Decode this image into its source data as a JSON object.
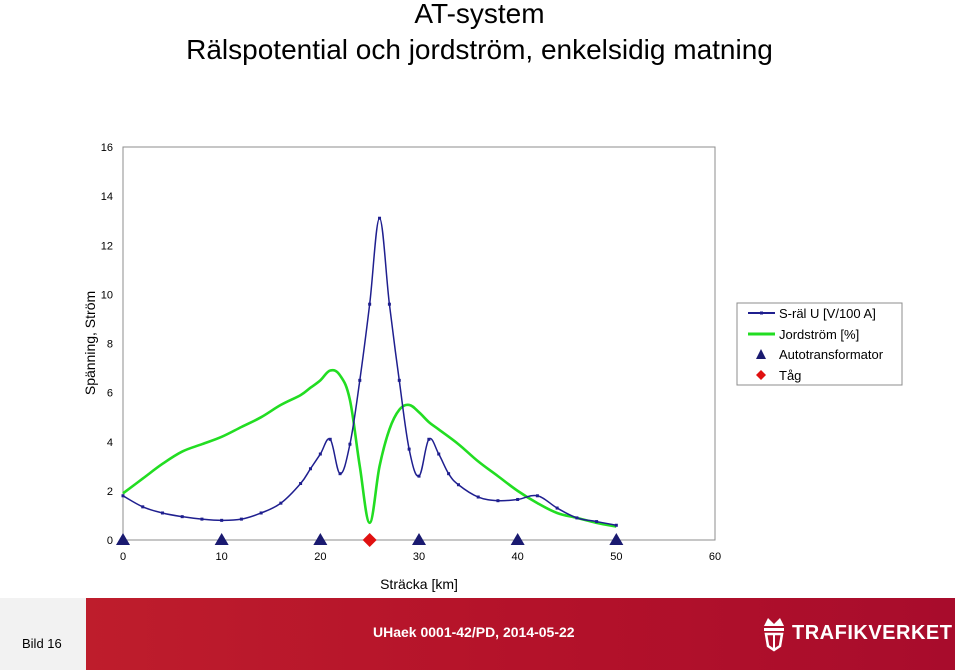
{
  "title_line1": "AT-system",
  "title_line2": "Rälspotential och jordström, enkelsidig matning",
  "footer": {
    "slide_label": "Bild 16",
    "reference": "UHaek 0001-42/PD, 2014-05-22",
    "brand": "TRAFIKVERKET"
  },
  "colors": {
    "srail": "#1f1f8f",
    "jord": "#22dd22",
    "autotrafo": "#1a1a70",
    "tag": "#e01010",
    "footer_red": "#b4122a"
  },
  "chart_data": {
    "type": "line",
    "title": "",
    "xlabel": "Sträcka [km]",
    "ylabel": "Spänning, Ström",
    "xlim": [
      0,
      60
    ],
    "ylim": [
      0,
      16
    ],
    "xticks": [
      "0",
      "10",
      "20",
      "30",
      "40",
      "50",
      "60"
    ],
    "yticks": [
      "0",
      "2",
      "4",
      "6",
      "8",
      "10",
      "12",
      "14",
      "16"
    ],
    "grid": false,
    "legend_position": "right",
    "series": [
      {
        "name": "S-räl U [V/100 A]",
        "kind": "line-markers",
        "x": [
          0,
          2,
          4,
          6,
          8,
          10,
          12,
          14,
          16,
          18,
          19,
          20,
          21,
          22,
          23,
          24,
          25,
          26,
          27,
          28,
          29,
          30,
          31,
          32,
          33,
          34,
          36,
          38,
          40,
          42,
          44,
          46,
          48,
          50
        ],
        "y": [
          1.8,
          1.35,
          1.1,
          0.95,
          0.85,
          0.8,
          0.85,
          1.1,
          1.5,
          2.3,
          2.9,
          3.5,
          4.1,
          2.7,
          3.9,
          6.5,
          9.6,
          13.1,
          9.6,
          6.5,
          3.7,
          2.6,
          4.1,
          3.5,
          2.7,
          2.25,
          1.75,
          1.6,
          1.65,
          1.8,
          1.3,
          0.9,
          0.75,
          0.6
        ]
      },
      {
        "name": "Jordström [%]",
        "kind": "line",
        "x": [
          0,
          2,
          4,
          6,
          8,
          10,
          12,
          14,
          16,
          18,
          19,
          20,
          21,
          22,
          23,
          24,
          25,
          26,
          27,
          28,
          29,
          30,
          31,
          32,
          34,
          36,
          38,
          40,
          42,
          44,
          46,
          48,
          50
        ],
        "y": [
          1.9,
          2.5,
          3.1,
          3.6,
          3.9,
          4.2,
          4.6,
          5.0,
          5.5,
          5.9,
          6.2,
          6.5,
          6.9,
          6.7,
          5.7,
          3.0,
          0.7,
          3.0,
          4.5,
          5.3,
          5.5,
          5.2,
          4.8,
          4.5,
          3.9,
          3.2,
          2.6,
          2.0,
          1.5,
          1.1,
          0.9,
          0.7,
          0.55
        ]
      },
      {
        "name": "Autotransformator",
        "kind": "markers-triangle",
        "x": [
          0,
          10,
          20,
          30,
          40,
          50
        ],
        "y": [
          0,
          0,
          0,
          0,
          0,
          0
        ]
      },
      {
        "name": "Tåg",
        "kind": "marker-diamond",
        "x": [
          25
        ],
        "y": [
          0
        ]
      }
    ]
  }
}
